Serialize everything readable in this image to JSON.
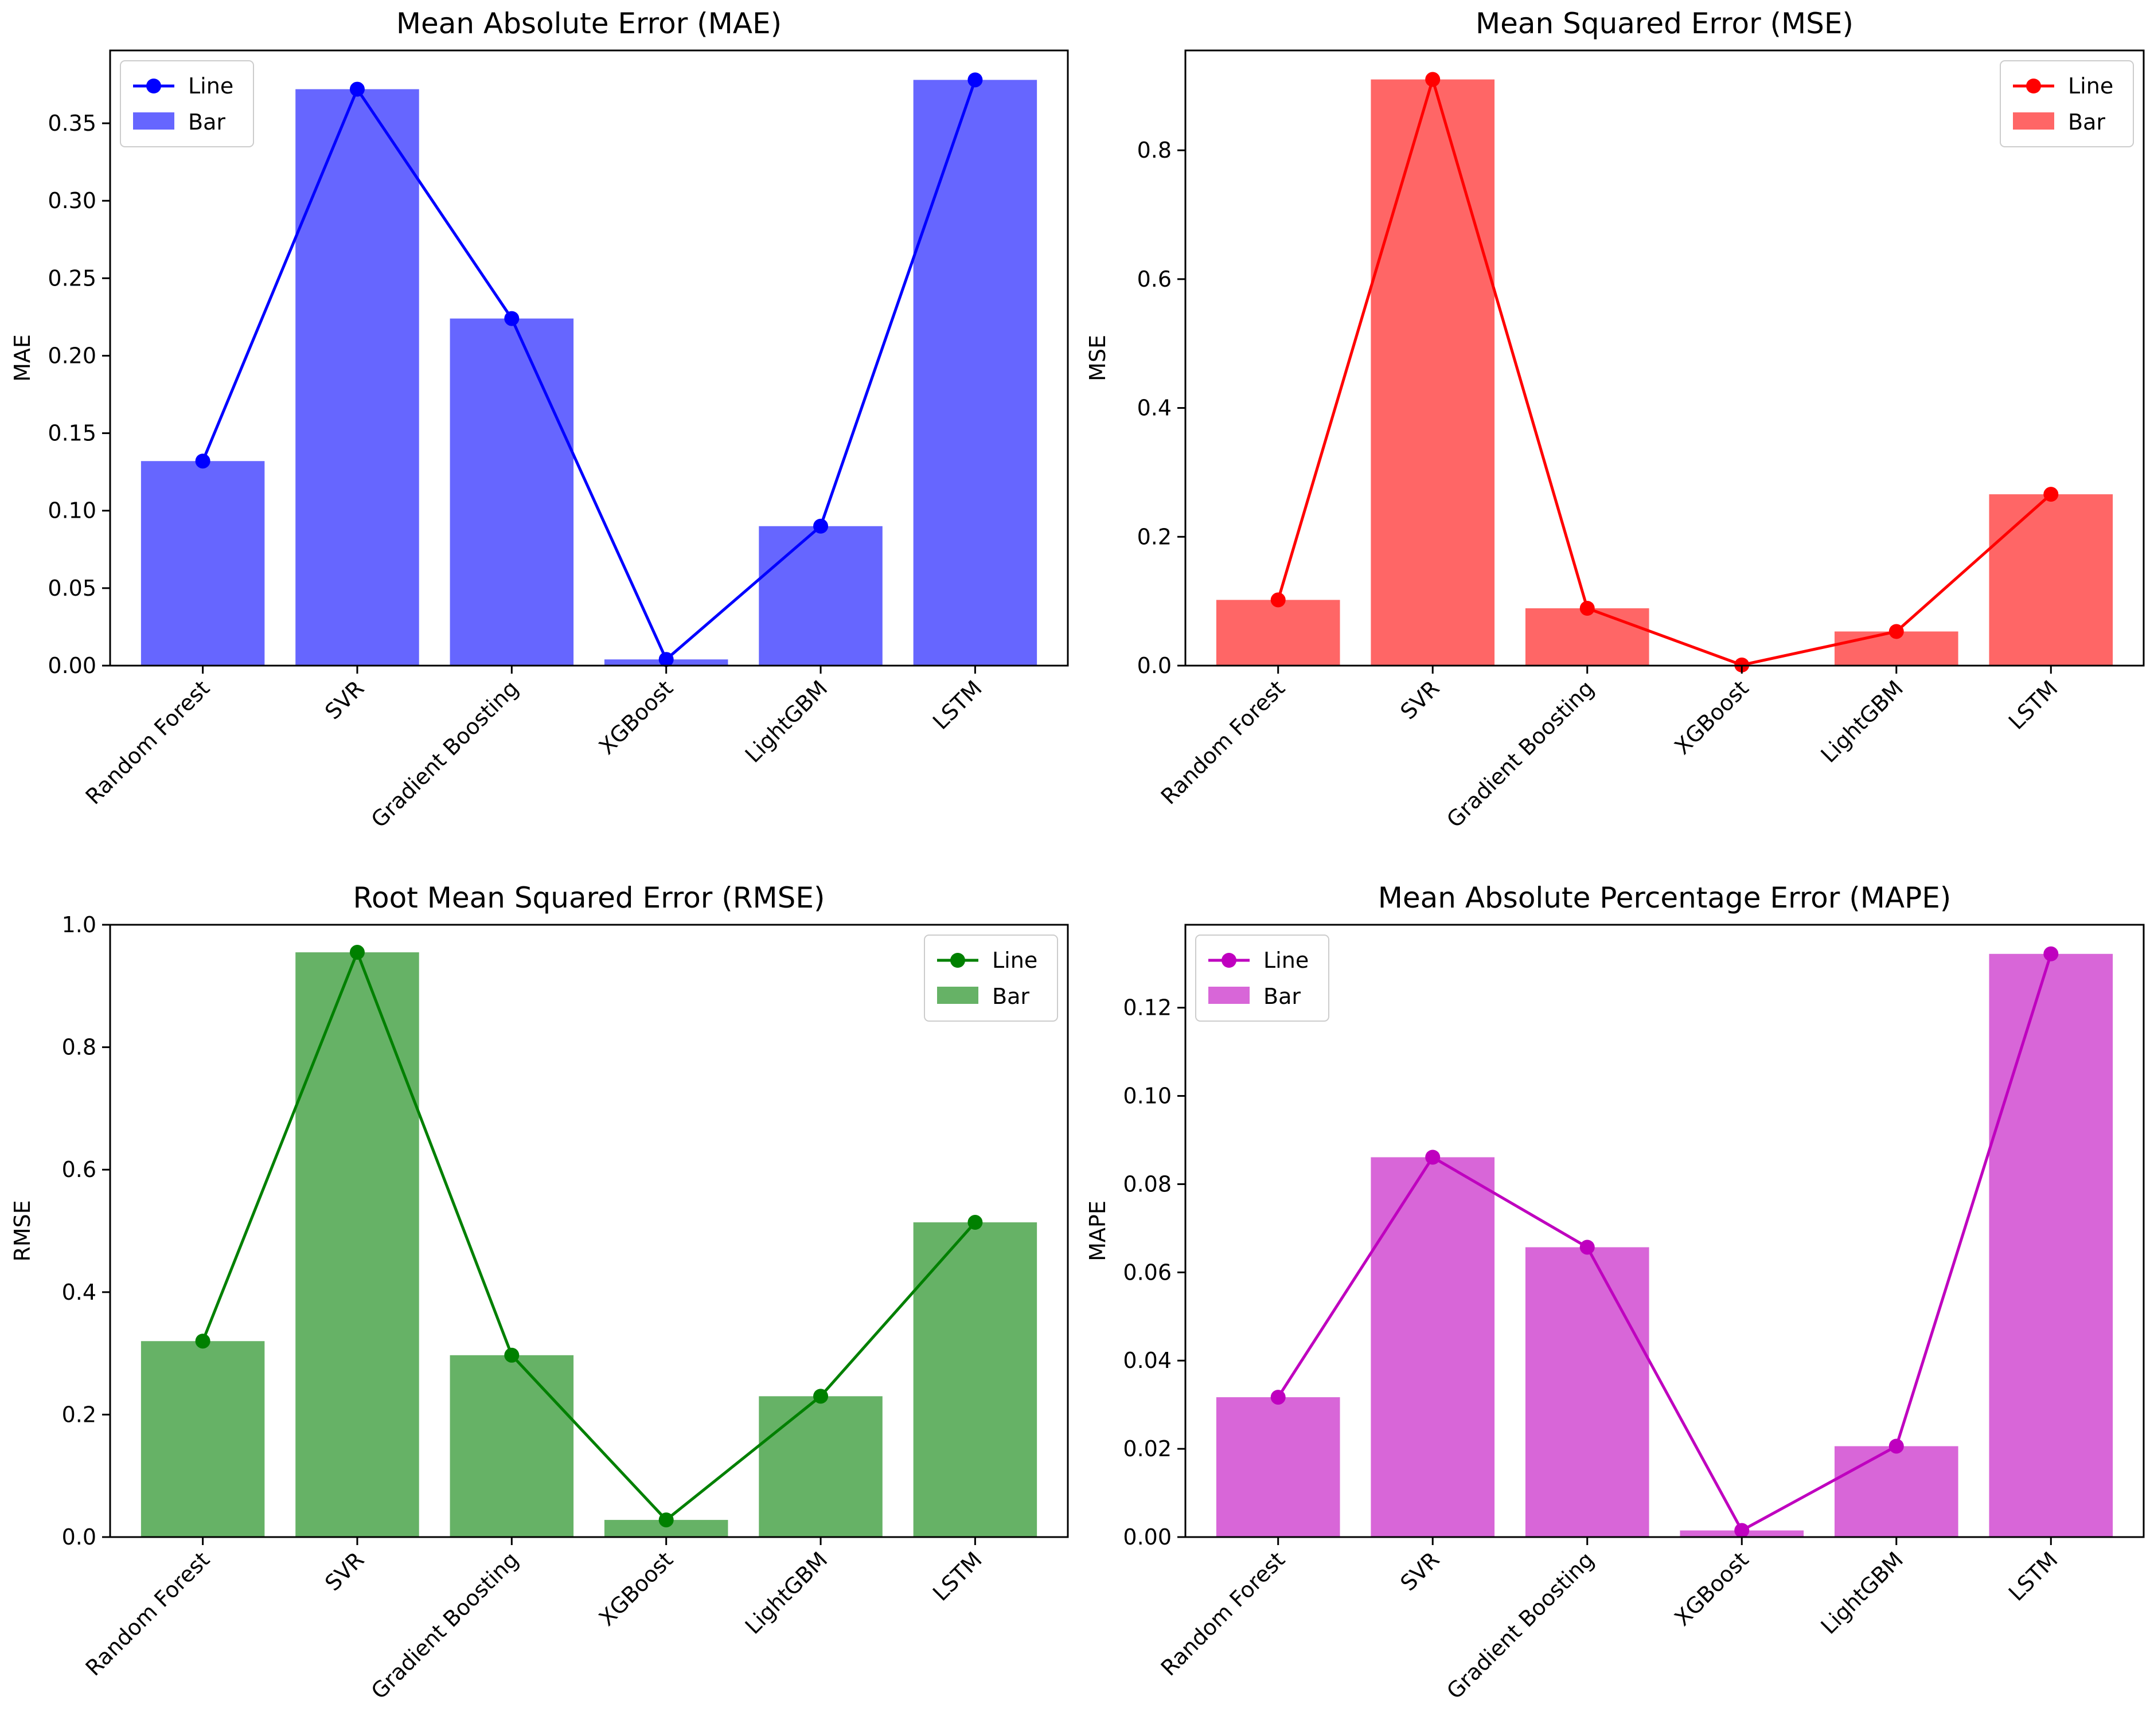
{
  "chart_data": [
    {
      "type": "bar",
      "id": "mae",
      "title": "Mean Absolute Error (MAE)",
      "xlabel": "",
      "ylabel": "MAE",
      "categories": [
        "Random Forest",
        "SVR",
        "Gradient Boosting",
        "XGBoost",
        "LightGBM",
        "LSTM"
      ],
      "series": [
        {
          "name": "Line",
          "kind": "line",
          "values": [
            0.132,
            0.372,
            0.224,
            0.004,
            0.09,
            0.378
          ]
        },
        {
          "name": "Bar",
          "kind": "bar",
          "values": [
            0.132,
            0.372,
            0.224,
            0.004,
            0.09,
            0.378
          ]
        }
      ],
      "ylim": [
        0,
        0.397
      ],
      "yticks": [
        0.0,
        0.05,
        0.1,
        0.15,
        0.2,
        0.25,
        0.3,
        0.35
      ],
      "ytick_labels": [
        "0.00",
        "0.05",
        "0.10",
        "0.15",
        "0.20",
        "0.25",
        "0.30",
        "0.35"
      ],
      "legend_position": "upper-left",
      "line_color": "#0000ff",
      "bar_color": "#6666ff"
    },
    {
      "type": "bar",
      "id": "mse",
      "title": "Mean Squared Error (MSE)",
      "xlabel": "",
      "ylabel": "MSE",
      "categories": [
        "Random Forest",
        "SVR",
        "Gradient Boosting",
        "XGBoost",
        "LightGBM",
        "LSTM"
      ],
      "series": [
        {
          "name": "Line",
          "kind": "line",
          "values": [
            0.102,
            0.91,
            0.089,
            0.001,
            0.053,
            0.266
          ]
        },
        {
          "name": "Bar",
          "kind": "bar",
          "values": [
            0.102,
            0.91,
            0.089,
            0.001,
            0.053,
            0.266
          ]
        }
      ],
      "ylim": [
        0,
        0.955
      ],
      "yticks": [
        0.0,
        0.2,
        0.4,
        0.6,
        0.8
      ],
      "ytick_labels": [
        "0.0",
        "0.2",
        "0.4",
        "0.6",
        "0.8"
      ],
      "legend_position": "upper-right",
      "line_color": "#ff0000",
      "bar_color": "#ff6666"
    },
    {
      "type": "bar",
      "id": "rmse",
      "title": "Root Mean Squared Error (RMSE)",
      "xlabel": "",
      "ylabel": "RMSE",
      "categories": [
        "Random Forest",
        "SVR",
        "Gradient Boosting",
        "XGBoost",
        "LightGBM",
        "LSTM"
      ],
      "series": [
        {
          "name": "Line",
          "kind": "line",
          "values": [
            0.32,
            0.955,
            0.297,
            0.028,
            0.23,
            0.514
          ]
        },
        {
          "name": "Bar",
          "kind": "bar",
          "values": [
            0.32,
            0.955,
            0.297,
            0.028,
            0.23,
            0.514
          ]
        }
      ],
      "ylim": [
        0,
        1.0
      ],
      "yticks": [
        0.0,
        0.2,
        0.4,
        0.6,
        0.8,
        1.0
      ],
      "ytick_labels": [
        "0.0",
        "0.2",
        "0.4",
        "0.6",
        "0.8",
        "1.0"
      ],
      "legend_position": "upper-right",
      "line_color": "#008000",
      "bar_color": "#66b266"
    },
    {
      "type": "bar",
      "id": "mape",
      "title": "Mean Absolute Percentage Error (MAPE)",
      "xlabel": "",
      "ylabel": "MAPE",
      "categories": [
        "Random Forest",
        "SVR",
        "Gradient Boosting",
        "XGBoost",
        "LightGBM",
        "LSTM"
      ],
      "series": [
        {
          "name": "Line",
          "kind": "line",
          "values": [
            0.0317,
            0.0861,
            0.0657,
            0.0015,
            0.0206,
            0.1322
          ]
        },
        {
          "name": "Bar",
          "kind": "bar",
          "values": [
            0.0317,
            0.0861,
            0.0657,
            0.0015,
            0.0206,
            0.1322
          ]
        }
      ],
      "ylim": [
        0,
        0.1388
      ],
      "yticks": [
        0.0,
        0.02,
        0.04,
        0.06,
        0.08,
        0.1,
        0.12
      ],
      "ytick_labels": [
        "0.00",
        "0.02",
        "0.04",
        "0.06",
        "0.08",
        "0.10",
        "0.12"
      ],
      "legend_position": "upper-left",
      "line_color": "#bf00bf",
      "bar_color": "#d866d8"
    }
  ]
}
